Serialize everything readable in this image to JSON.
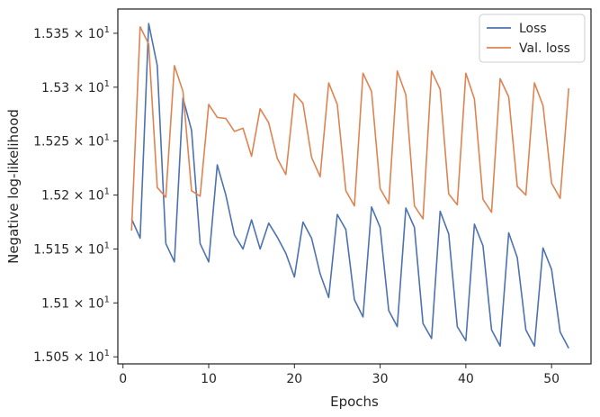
{
  "chart_data": {
    "type": "line",
    "xlabel": "Epochs",
    "ylabel": "Negative log-likelihood",
    "xlim": [
      -0.6,
      54.6
    ],
    "ylim": [
      15.0435,
      15.3725
    ],
    "xticks": [
      0,
      10,
      20,
      30,
      40,
      50
    ],
    "yticks": [
      15.05,
      15.1,
      15.15,
      15.2,
      15.25,
      15.3,
      15.35
    ],
    "ytick_labels": [
      {
        "mantissa": "1.505",
        "exp": "1"
      },
      {
        "mantissa": "1.51",
        "exp": "1"
      },
      {
        "mantissa": "1.515",
        "exp": "1"
      },
      {
        "mantissa": "1.52",
        "exp": "1"
      },
      {
        "mantissa": "1.525",
        "exp": "1"
      },
      {
        "mantissa": "1.53",
        "exp": "1"
      },
      {
        "mantissa": "1.535",
        "exp": "1"
      }
    ],
    "grid": false,
    "legend": "top-right",
    "x": [
      1,
      2,
      3,
      4,
      5,
      6,
      7,
      8,
      9,
      10,
      11,
      12,
      13,
      14,
      15,
      16,
      17,
      18,
      19,
      20,
      21,
      22,
      23,
      24,
      25,
      26,
      27,
      28,
      29,
      30,
      31,
      32,
      33,
      34,
      35,
      36,
      37,
      38,
      39,
      40,
      41,
      42,
      43,
      44,
      45,
      46,
      47,
      48,
      49,
      50,
      51,
      52
    ],
    "series": [
      {
        "name": "Loss",
        "color": "#4c72b0",
        "values": [
          15.178,
          15.16,
          15.359,
          15.32,
          15.155,
          15.138,
          15.29,
          15.26,
          15.155,
          15.138,
          15.228,
          15.2,
          15.163,
          15.15,
          15.177,
          15.15,
          15.174,
          15.161,
          15.146,
          15.124,
          15.175,
          15.16,
          15.127,
          15.105,
          15.182,
          15.168,
          15.103,
          15.087,
          15.189,
          15.17,
          15.093,
          15.078,
          15.188,
          15.17,
          15.081,
          15.067,
          15.185,
          15.164,
          15.078,
          15.065,
          15.173,
          15.153,
          15.075,
          15.06,
          15.165,
          15.142,
          15.075,
          15.06,
          15.151,
          15.131,
          15.073,
          15.058
        ]
      },
      {
        "name": "Val. loss",
        "color": "#dd8452",
        "values": [
          15.167,
          15.356,
          15.34,
          15.207,
          15.198,
          15.32,
          15.296,
          15.204,
          15.199,
          15.284,
          15.272,
          15.271,
          15.259,
          15.262,
          15.236,
          15.28,
          15.267,
          15.234,
          15.219,
          15.294,
          15.285,
          15.235,
          15.217,
          15.304,
          15.284,
          15.204,
          15.19,
          15.313,
          15.296,
          15.206,
          15.192,
          15.315,
          15.293,
          15.19,
          15.178,
          15.315,
          15.298,
          15.201,
          15.191,
          15.313,
          15.289,
          15.196,
          15.184,
          15.308,
          15.291,
          15.208,
          15.2,
          15.304,
          15.283,
          15.211,
          15.197,
          15.299
        ]
      }
    ]
  }
}
